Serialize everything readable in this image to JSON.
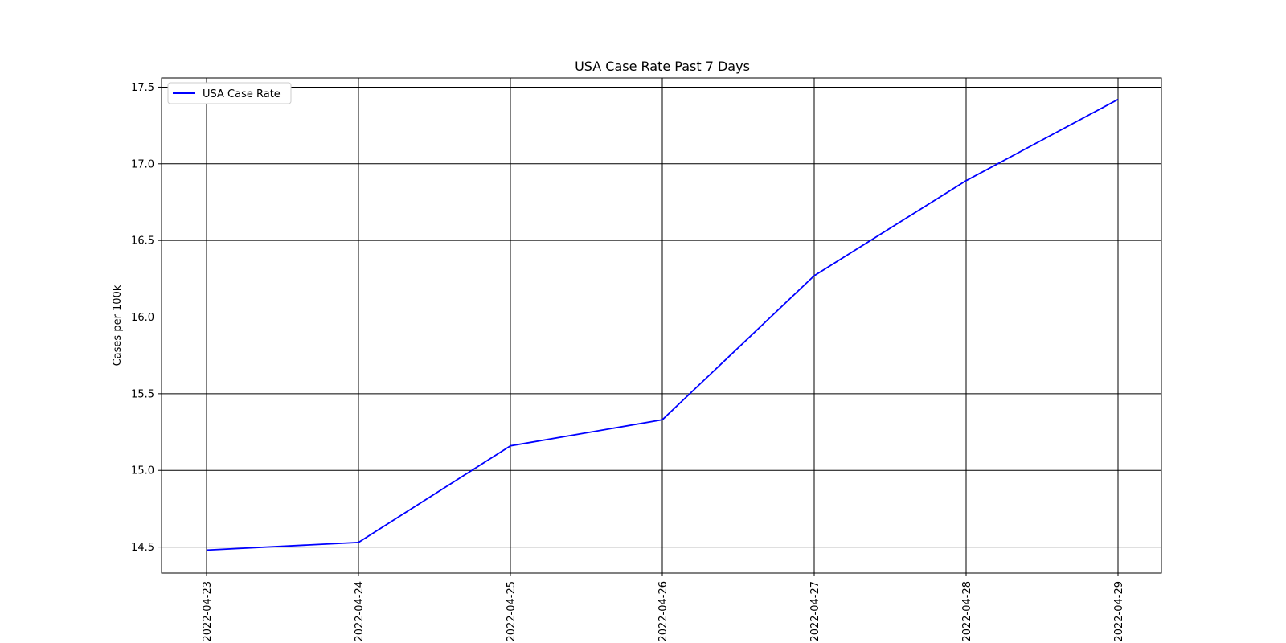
{
  "chart_data": {
    "type": "line",
    "title": "USA Case Rate Past 7 Days",
    "xlabel": "",
    "ylabel": "Cases per 100k",
    "x": [
      "2022-04-23",
      "2022-04-24",
      "2022-04-25",
      "2022-04-26",
      "2022-04-27",
      "2022-04-28",
      "2022-04-29"
    ],
    "series": [
      {
        "name": "USA Case Rate",
        "color": "#0000ff",
        "values": [
          14.48,
          14.53,
          15.16,
          15.33,
          16.27,
          16.89,
          17.42
        ]
      }
    ],
    "yticks": [
      "14.5",
      "15.0",
      "15.5",
      "16.0",
      "16.5",
      "17.0",
      "17.5"
    ],
    "ylim": [
      14.33,
      17.56
    ],
    "grid": true,
    "legend_position": "upper-left"
  }
}
